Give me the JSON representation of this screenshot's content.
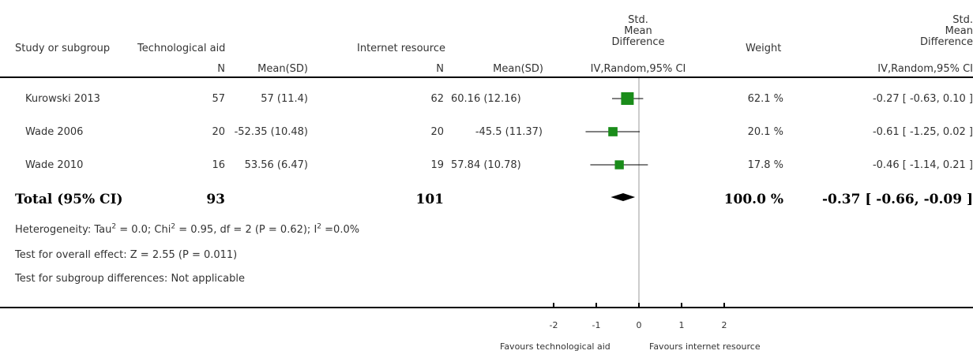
{
  "headers": {
    "study": "Study or subgroup",
    "group1": "Technological aid",
    "group2": "Internet resource",
    "n": "N",
    "mean_sd": "Mean(SD)",
    "smd_l1": "Std.",
    "smd_l2": "Mean",
    "smd_l3": "Difference",
    "smd_method": "IV,Random,95% CI",
    "weight": "Weight",
    "smd2_l1": "Std.",
    "smd2_l2": "Mean",
    "smd2_l3": "Difference",
    "smd2_method": "IV,Random,95% CI"
  },
  "studies": [
    {
      "name": "Kurowski 2013",
      "n1": "57",
      "ms1": "57 (11.4)",
      "n2": "62",
      "ms2": "60.16 (12.16)",
      "weight": "62.1 %",
      "ci_text": "-0.27 [ -0.63, 0.10 ]"
    },
    {
      "name": "Wade 2006",
      "n1": "20",
      "ms1": "-52.35 (10.48)",
      "n2": "20",
      "ms2": "-45.5 (11.37)",
      "weight": "20.1 %",
      "ci_text": "-0.61 [ -1.25, 0.02 ]"
    },
    {
      "name": "Wade 2010",
      "n1": "16",
      "ms1": "53.56 (6.47)",
      "n2": "19",
      "ms2": "57.84 (10.78)",
      "weight": "17.8 %",
      "ci_text": "-0.46 [ -1.14, 0.21 ]"
    }
  ],
  "total": {
    "label": "Total (95% CI)",
    "n1": "93",
    "n2": "101",
    "weight": "100.0 %",
    "ci_text": "-0.37 [ -0.66, -0.09 ]"
  },
  "heterogeneity": {
    "prefix": "Heterogeneity: Tau",
    "sup1": "2",
    "mid1": " = 0.0; Chi",
    "sup2": "2",
    "mid2": " = 0.95, df = 2 (P = 0.62); I",
    "sup3": "2",
    "suffix": " =0.0%"
  },
  "overall_effect": "Test for overall effect: Z = 2.55 (P = 0.011)",
  "subgroup_diff": "Test for subgroup differences: Not applicable",
  "axis": {
    "ticks": [
      -2,
      -1,
      0,
      1,
      2
    ],
    "tick_labels": [
      "-2",
      "-1",
      "0",
      "1",
      "2"
    ],
    "left_label": "Favours technological aid",
    "right_label": "Favours internet resource"
  },
  "chart_data": {
    "type": "forest",
    "xlim": [
      -2,
      2
    ],
    "studies": [
      {
        "name": "Kurowski 2013",
        "est": -0.27,
        "lo": -0.63,
        "hi": 0.1,
        "weight": 62.1
      },
      {
        "name": "Wade 2006",
        "est": -0.61,
        "lo": -1.25,
        "hi": 0.02,
        "weight": 20.1
      },
      {
        "name": "Wade 2010",
        "est": -0.46,
        "lo": -1.14,
        "hi": 0.21,
        "weight": 17.8
      }
    ],
    "total": {
      "est": -0.37,
      "lo": -0.66,
      "hi": -0.09
    },
    "marker_color": "#1a8c1a"
  }
}
